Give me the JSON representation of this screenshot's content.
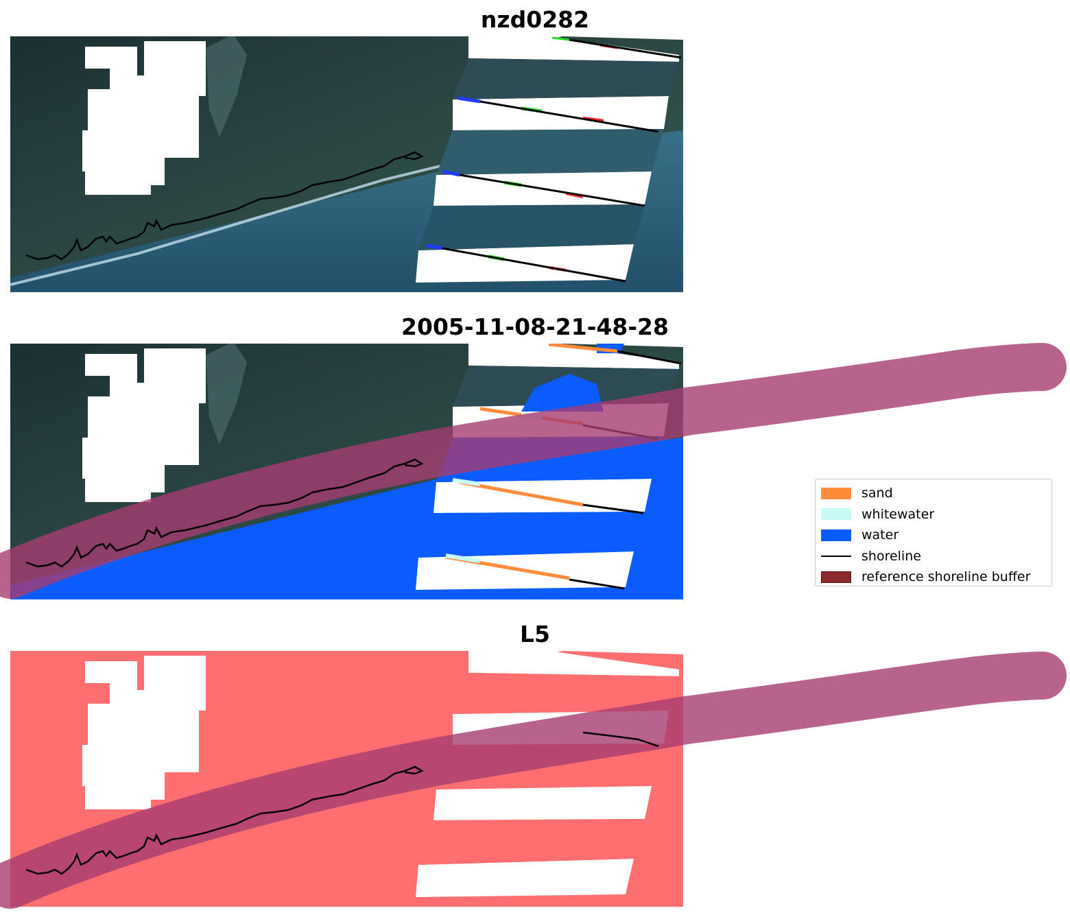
{
  "titles": {
    "panel1": "nzd0282",
    "panel2": "2005-11-08-21-48-28",
    "panel3": "L5"
  },
  "legend": {
    "items": [
      {
        "label": "sand",
        "color": "#ff8c3a",
        "kind": "patch"
      },
      {
        "label": "whitewater",
        "color": "#c8fbf5",
        "kind": "patch"
      },
      {
        "label": "water",
        "color": "#0a5cff",
        "kind": "patch"
      },
      {
        "label": "shoreline",
        "color": "#000000",
        "kind": "line"
      },
      {
        "label": "reference shoreline buffer",
        "color": "#8b2a2a",
        "kind": "patch"
      }
    ]
  },
  "colors": {
    "land_dark": "#1f3a3d",
    "land_mid": "#2c4a48",
    "sea": "#2a5870",
    "sea_light": "#3a6f88",
    "surf": "#b8d7e6",
    "class_water": "#0a5cff",
    "class_sand": "#ff8c3a",
    "class_whitewater": "#c8fbf5",
    "buffer_fill": "#a63c72",
    "buffer_edge": "#8b2a55",
    "buffer_on_water": "#5a2fa0",
    "salmon": "#ff6f6f",
    "shoreline": "#000000",
    "cloud": "#ffffff"
  }
}
